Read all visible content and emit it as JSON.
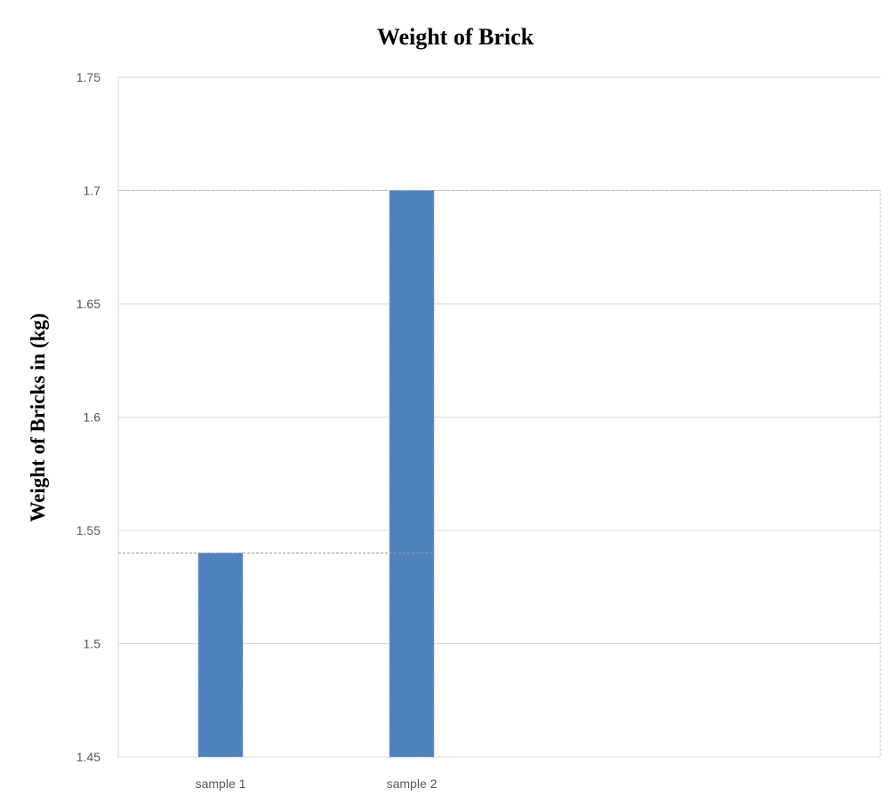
{
  "chart_data": {
    "type": "bar",
    "title": "Weight of Brick",
    "xlabel": "",
    "ylabel": "Weight of Bricks in (kg)",
    "categories": [
      "sample 1",
      "sample 2"
    ],
    "values": [
      1.54,
      1.7
    ],
    "ylim": [
      1.45,
      1.75
    ],
    "yticks": [
      "1.45",
      "1.5",
      "1.55",
      "1.6",
      "1.65",
      "1.7",
      "1.75"
    ],
    "grid": true,
    "legend": "none",
    "bar_color": "#4f81bd"
  }
}
